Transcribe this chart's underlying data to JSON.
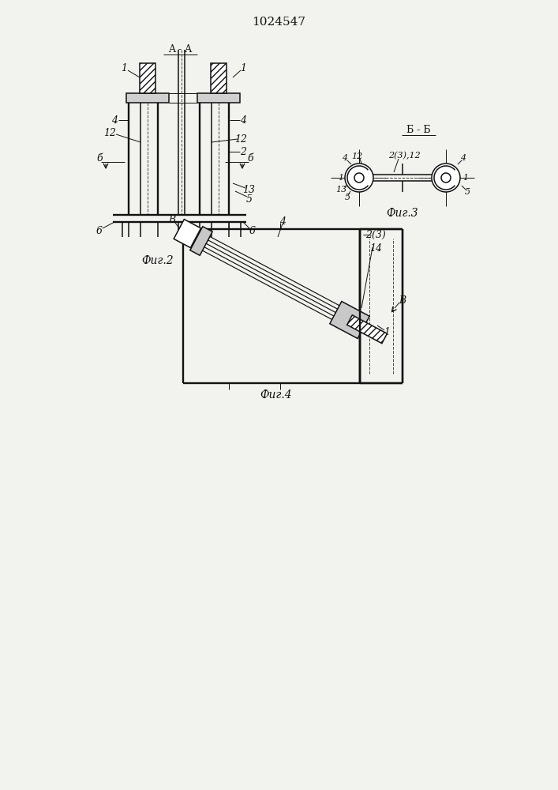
{
  "title": "1024547",
  "bg_color": "#f2f2ee",
  "line_color": "#111111",
  "fig2_caption": "Фиг.2",
  "fig3_caption": "Фиг.3",
  "fig4_caption": "Фиг.4",
  "section_aa": "A - A",
  "section_bb": "Б - Б",
  "lw_thin": 0.7,
  "lw_med": 1.1,
  "lw_thick": 1.7
}
